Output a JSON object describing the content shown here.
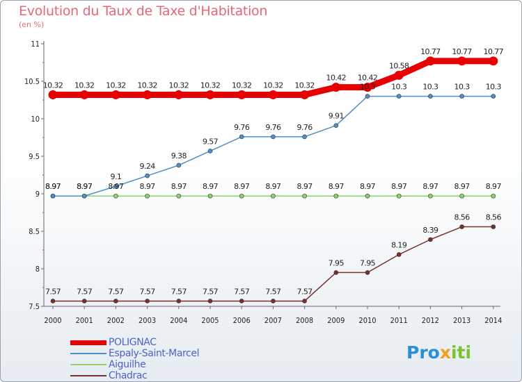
{
  "header": {
    "title": "Evolution du Taux de Taxe d'Habitation",
    "unit": "(en %)"
  },
  "chart_data": {
    "type": "line",
    "x": [
      "2000",
      "2001",
      "2002",
      "2003",
      "2004",
      "2005",
      "2006",
      "2007",
      "2008",
      "2009",
      "2010",
      "2011",
      "2012",
      "2013",
      "2014"
    ],
    "ylim": [
      7.5,
      11
    ],
    "yticks": [
      "7.5",
      "8",
      "8.5",
      "9",
      "9.5",
      "10",
      "10.5",
      "11"
    ],
    "grid": false,
    "legend_position": "bottom-left",
    "series": [
      {
        "name": "POLIGNAC",
        "color": "#e60000",
        "values": [
          10.32,
          10.32,
          10.32,
          10.32,
          10.32,
          10.32,
          10.32,
          10.32,
          10.32,
          10.42,
          10.42,
          10.58,
          10.77,
          10.77,
          10.77
        ],
        "labels": [
          "10.32",
          "10.32",
          "10.32",
          "10.32",
          "10.32",
          "10.32",
          "10.32",
          "10.32",
          "10.32",
          "10.42",
          "10.42",
          "10.58",
          "10.77",
          "10.77",
          "10.77"
        ]
      },
      {
        "name": "Espaly-Saint-Marcel",
        "color": "#4f8fc6",
        "values": [
          8.97,
          8.97,
          9.1,
          9.24,
          9.38,
          9.57,
          9.76,
          9.76,
          9.76,
          9.91,
          10.3,
          10.3,
          10.3,
          10.3,
          10.3
        ],
        "labels": [
          "8.97",
          "8.97",
          "9.1",
          "9.24",
          "9.38",
          "9.57",
          "9.76",
          "9.76",
          "9.76",
          "9.91",
          "10.3",
          "10.3",
          "10.3",
          "10.3",
          "10.3"
        ]
      },
      {
        "name": "Aiguilhe",
        "color": "#8fd16a",
        "values": [
          8.97,
          8.97,
          8.97,
          8.97,
          8.97,
          8.97,
          8.97,
          8.97,
          8.97,
          8.97,
          8.97,
          8.97,
          8.97,
          8.97,
          8.97
        ],
        "labels": [
          "8.97",
          "8.97",
          "8.97",
          "8.97",
          "8.97",
          "8.97",
          "8.97",
          "8.97",
          "8.97",
          "8.97",
          "8.97",
          "8.97",
          "8.97",
          "8.97",
          "8.97"
        ]
      },
      {
        "name": "Chadrac",
        "color": "#7a2f2f",
        "values": [
          7.57,
          7.57,
          7.57,
          7.57,
          7.57,
          7.57,
          7.57,
          7.57,
          7.57,
          7.95,
          7.95,
          8.19,
          8.39,
          8.56,
          8.56
        ],
        "labels": [
          "7.57",
          "7.57",
          "7.57",
          "7.57",
          "7.57",
          "7.57",
          "7.57",
          "7.57",
          "7.57",
          "7.95",
          "7.95",
          "8.19",
          "8.39",
          "8.56",
          "8.56"
        ]
      }
    ]
  },
  "logo": {
    "part1": "Pro",
    "part2": "x",
    "part3": "iti"
  }
}
